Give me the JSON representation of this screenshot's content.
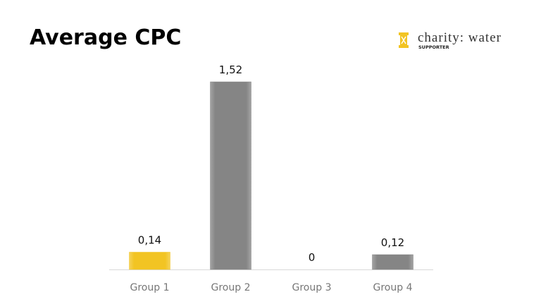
{
  "logo": {
    "name": "charity: water",
    "tagline": "SUPPORTER"
  },
  "chart_data": {
    "type": "bar",
    "title": "Average CPC",
    "categories": [
      "Group 1",
      "Group 2",
      "Group 3",
      "Group 4"
    ],
    "values": [
      0.14,
      1.52,
      0,
      0.12
    ],
    "value_labels": [
      "0,14",
      "1,52",
      "0",
      "0,12"
    ],
    "colors": [
      "#f2c423",
      "#858585",
      "#858585",
      "#858585"
    ]
  }
}
